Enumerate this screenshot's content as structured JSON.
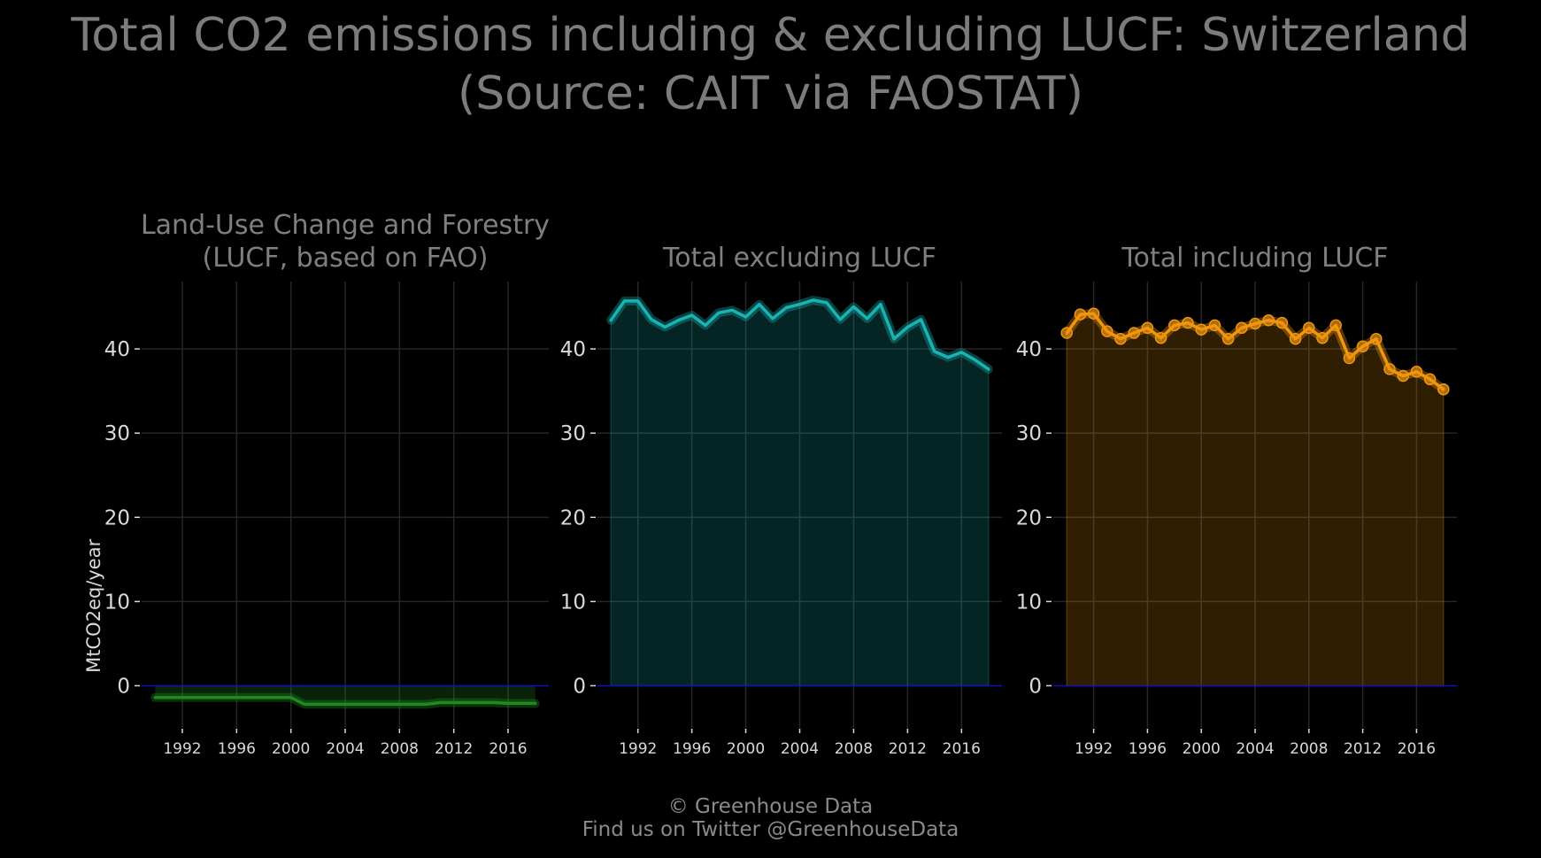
{
  "title_line1": "Total CO2 emissions including & excluding LUCF: Switzerland",
  "title_line2": "(Source: CAIT via FAOSTAT)",
  "caption_line1": "© Greenhouse Data",
  "caption_line2": "Find us on Twitter @GreenhouseData",
  "colors": {
    "background": "#000000",
    "grid": "#262626",
    "zero_line": "#1010c0",
    "text": "#7f7f7f",
    "tick_text": "#d9d9d9",
    "lucf": "#1f8a1f",
    "excl": "#19b3b3",
    "incl": "#f0960f"
  },
  "chart_data": [
    {
      "type": "line",
      "panel": "lucf",
      "title": [
        "Land-Use Change and Forestry",
        "(LUCF, based on FAO)"
      ],
      "ylabel": "MtCO2eq/year",
      "xlabel": "",
      "xlim": [
        1989,
        2019
      ],
      "ylim": [
        -5,
        48
      ],
      "x_ticks": [
        1992,
        1996,
        2000,
        2004,
        2008,
        2012,
        2016
      ],
      "y_ticks": [
        0,
        10,
        20,
        30,
        40
      ],
      "series": [
        {
          "x": [
            1990,
            1991,
            1992,
            1993,
            1994,
            1995,
            1996,
            1997,
            1998,
            1999,
            2000,
            2001,
            2002,
            2003,
            2004,
            2005,
            2006,
            2007,
            2008,
            2009,
            2010,
            2011,
            2012,
            2013,
            2014,
            2015,
            2016,
            2017,
            2018
          ],
          "y": [
            -1.4,
            -1.4,
            -1.4,
            -1.4,
            -1.4,
            -1.4,
            -1.4,
            -1.4,
            -1.4,
            -1.4,
            -1.4,
            -2.2,
            -2.2,
            -2.2,
            -2.2,
            -2.2,
            -2.2,
            -2.2,
            -2.2,
            -2.2,
            -2.2,
            -2.0,
            -2.0,
            -2.0,
            -2.0,
            -2.0,
            -2.1,
            -2.1,
            -2.1
          ]
        }
      ]
    },
    {
      "type": "area",
      "panel": "excl",
      "title": [
        "Total excluding LUCF"
      ],
      "ylabel": "",
      "xlabel": "",
      "xlim": [
        1989,
        2019
      ],
      "ylim": [
        -5,
        48
      ],
      "x_ticks": [
        1992,
        1996,
        2000,
        2004,
        2008,
        2012,
        2016
      ],
      "y_ticks": [
        0,
        10,
        20,
        30,
        40
      ],
      "series": [
        {
          "x": [
            1990,
            1991,
            1992,
            1993,
            1994,
            1995,
            1996,
            1997,
            1998,
            1999,
            2000,
            2001,
            2002,
            2003,
            2004,
            2005,
            2006,
            2007,
            2008,
            2009,
            2010,
            2011,
            2012,
            2013,
            2014,
            2015,
            2016,
            2017,
            2018
          ],
          "y": [
            43.4,
            45.7,
            45.7,
            43.5,
            42.6,
            43.4,
            44.0,
            42.8,
            44.3,
            44.6,
            43.8,
            45.3,
            43.6,
            44.9,
            45.3,
            45.8,
            45.5,
            43.5,
            45.0,
            43.6,
            45.3,
            41.2,
            42.6,
            43.5,
            39.7,
            39.0,
            39.6,
            38.7,
            37.6
          ]
        }
      ]
    },
    {
      "type": "area",
      "panel": "incl",
      "title": [
        "Total including LUCF"
      ],
      "ylabel": "",
      "xlabel": "",
      "xlim": [
        1989,
        2019
      ],
      "ylim": [
        -5,
        48
      ],
      "x_ticks": [
        1992,
        1996,
        2000,
        2004,
        2008,
        2012,
        2016
      ],
      "y_ticks": [
        0,
        10,
        20,
        30,
        40
      ],
      "series": [
        {
          "x": [
            1990,
            1991,
            1992,
            1993,
            1994,
            1995,
            1996,
            1997,
            1998,
            1999,
            2000,
            2001,
            2002,
            2003,
            2004,
            2005,
            2006,
            2007,
            2008,
            2009,
            2010,
            2011,
            2012,
            2013,
            2014,
            2015,
            2016,
            2017,
            2018
          ],
          "y": [
            41.9,
            44.1,
            44.2,
            42.1,
            41.2,
            41.9,
            42.5,
            41.3,
            42.8,
            43.1,
            42.3,
            42.8,
            41.2,
            42.5,
            43.0,
            43.4,
            43.1,
            41.2,
            42.5,
            41.3,
            42.8,
            38.9,
            40.3,
            41.2,
            37.6,
            36.8,
            37.3,
            36.4,
            35.2
          ]
        }
      ]
    }
  ]
}
